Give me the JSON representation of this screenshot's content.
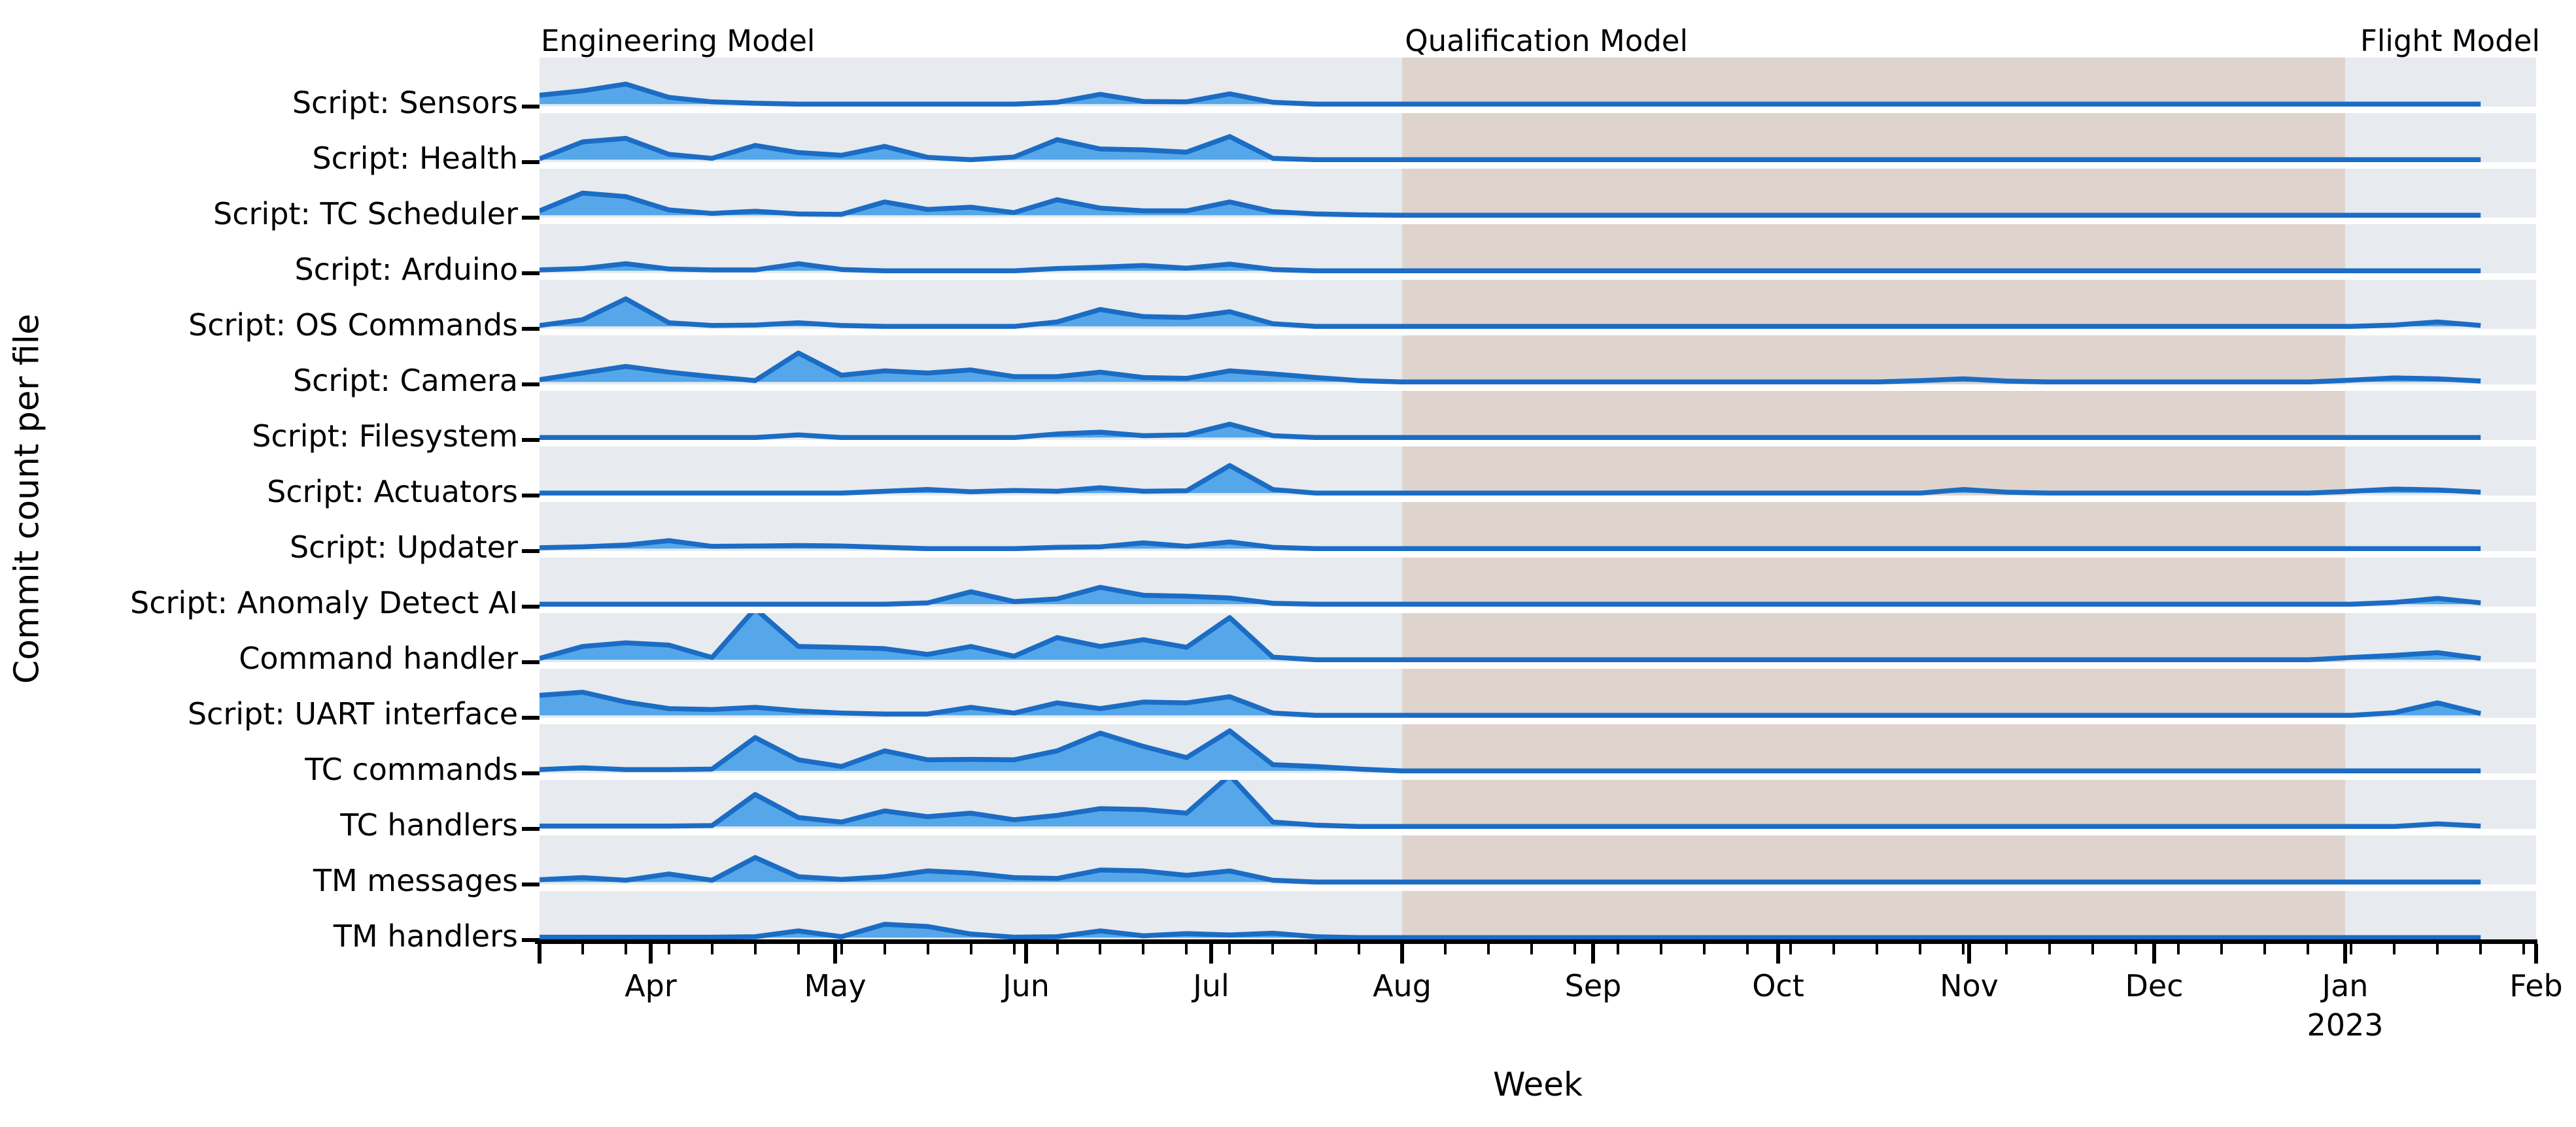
{
  "figure": {
    "y_axis_label": "Commit count per file",
    "x_axis_label": "Week"
  },
  "chart_data": {
    "type": "area",
    "subtype": "ridgeline",
    "title": "",
    "xlabel": "Week",
    "ylabel": "Commit count per file",
    "x_range": [
      "2022-03-14",
      "2023-02-01"
    ],
    "value_unit": "relative height per row; 1.0 = full row height (values > 1 are clipped by the row band)",
    "grid": false,
    "legend": "none",
    "colors": {
      "area_fill": "#55a7e9",
      "area_stroke": "#1b6cc4",
      "row_background": "#e7eaee",
      "qualification_shade": "#ded4cd",
      "axis": "#000000",
      "background": "#ffffff"
    },
    "phases": [
      {
        "label": "Engineering Model",
        "start": "2022-03-14",
        "end": "2022-08-01",
        "shaded": false,
        "label_align": "left"
      },
      {
        "label": "Qualification Model",
        "start": "2022-08-01",
        "end": "2023-01-01",
        "shaded": true,
        "label_align": "left"
      },
      {
        "label": "Flight Model",
        "start": "2023-01-01",
        "end": "2023-02-01",
        "shaded": false,
        "label_align": "right"
      }
    ],
    "x_ticks": [
      {
        "label": "",
        "date": "2022-03-14"
      },
      {
        "label": "Apr",
        "date": "2022-04-01"
      },
      {
        "label": "May",
        "date": "2022-05-01"
      },
      {
        "label": "Jun",
        "date": "2022-06-01"
      },
      {
        "label": "Jul",
        "date": "2022-07-01"
      },
      {
        "label": "Aug",
        "date": "2022-08-01"
      },
      {
        "label": "Sep",
        "date": "2022-09-01"
      },
      {
        "label": "Oct",
        "date": "2022-10-01"
      },
      {
        "label": "Nov",
        "date": "2022-11-01"
      },
      {
        "label": "Dec",
        "date": "2022-12-01"
      },
      {
        "label": "Jan",
        "date": "2023-01-01",
        "year_label": "2023"
      },
      {
        "label": "Feb",
        "date": "2023-02-01"
      }
    ],
    "x": [
      "2022-03-14",
      "2022-03-21",
      "2022-03-28",
      "2022-04-04",
      "2022-04-11",
      "2022-04-18",
      "2022-04-25",
      "2022-05-02",
      "2022-05-09",
      "2022-05-16",
      "2022-05-23",
      "2022-05-30",
      "2022-06-06",
      "2022-06-13",
      "2022-06-20",
      "2022-06-27",
      "2022-07-04",
      "2022-07-11",
      "2022-07-18",
      "2022-07-25",
      "2022-08-01",
      "2022-08-08",
      "2022-08-15",
      "2022-08-22",
      "2022-08-29",
      "2022-09-05",
      "2022-09-12",
      "2022-09-19",
      "2022-09-26",
      "2022-10-03",
      "2022-10-10",
      "2022-10-17",
      "2022-10-24",
      "2022-10-31",
      "2022-11-07",
      "2022-11-14",
      "2022-11-21",
      "2022-11-28",
      "2022-12-05",
      "2022-12-12",
      "2022-12-19",
      "2022-12-26",
      "2023-01-02",
      "2023-01-09",
      "2023-01-16",
      "2023-01-23"
    ],
    "series": [
      {
        "name": "Script: Sensors",
        "values": [
          0.2,
          0.3,
          0.45,
          0.15,
          0.05,
          0.02,
          0,
          0,
          0,
          0,
          0,
          0,
          0.04,
          0.22,
          0.06,
          0.05,
          0.23,
          0.04,
          0,
          0,
          0,
          0,
          0,
          0,
          0,
          0,
          0,
          0,
          0,
          0,
          0,
          0,
          0,
          0,
          0,
          0,
          0,
          0,
          0,
          0,
          0,
          0,
          0,
          0,
          0,
          0
        ]
      },
      {
        "name": "Script: Health",
        "values": [
          0.02,
          0.4,
          0.48,
          0.12,
          0.03,
          0.32,
          0.16,
          0.1,
          0.3,
          0.05,
          0,
          0.06,
          0.45,
          0.24,
          0.22,
          0.17,
          0.52,
          0.03,
          0,
          0,
          0,
          0,
          0,
          0,
          0,
          0,
          0,
          0,
          0,
          0,
          0,
          0,
          0,
          0,
          0,
          0,
          0,
          0,
          0,
          0,
          0,
          0,
          0,
          0,
          0,
          0
        ]
      },
      {
        "name": "Script: TC Scheduler",
        "values": [
          0.1,
          0.5,
          0.42,
          0.12,
          0.04,
          0.09,
          0.03,
          0.02,
          0.3,
          0.13,
          0.18,
          0.06,
          0.35,
          0.16,
          0.1,
          0.1,
          0.3,
          0.08,
          0.03,
          0.01,
          0,
          0,
          0,
          0,
          0,
          0,
          0,
          0,
          0,
          0,
          0,
          0,
          0,
          0,
          0,
          0,
          0,
          0,
          0,
          0,
          0,
          0,
          0,
          0,
          0,
          0
        ]
      },
      {
        "name": "Script: Arduino",
        "values": [
          0.02,
          0.05,
          0.16,
          0.04,
          0.02,
          0.02,
          0.16,
          0.03,
          0,
          0,
          0,
          0,
          0.05,
          0.08,
          0.12,
          0.06,
          0.15,
          0.03,
          0,
          0,
          0,
          0,
          0,
          0,
          0,
          0,
          0,
          0,
          0,
          0,
          0,
          0,
          0,
          0,
          0,
          0,
          0,
          0,
          0,
          0,
          0,
          0,
          0,
          0,
          0,
          0
        ]
      },
      {
        "name": "Script: OS Commands",
        "values": [
          0.02,
          0.15,
          0.62,
          0.08,
          0.02,
          0.03,
          0.08,
          0.02,
          0,
          0,
          0,
          0,
          0.1,
          0.38,
          0.22,
          0.2,
          0.33,
          0.06,
          0,
          0,
          0,
          0,
          0,
          0,
          0,
          0,
          0,
          0,
          0,
          0,
          0,
          0,
          0,
          0,
          0,
          0,
          0,
          0,
          0,
          0,
          0,
          0,
          0,
          0.03,
          0.1,
          0.02
        ]
      },
      {
        "name": "Script: Camera",
        "values": [
          0.05,
          0.2,
          0.35,
          0.22,
          0.12,
          0.03,
          0.65,
          0.15,
          0.25,
          0.2,
          0.27,
          0.12,
          0.12,
          0.22,
          0.1,
          0.08,
          0.25,
          0.18,
          0.1,
          0.03,
          0,
          0,
          0,
          0,
          0,
          0,
          0,
          0,
          0,
          0,
          0,
          0,
          0.03,
          0.07,
          0.02,
          0,
          0,
          0,
          0,
          0,
          0,
          0,
          0.04,
          0.09,
          0.07,
          0.02
        ]
      },
      {
        "name": "Script: Filesystem",
        "values": [
          0,
          0,
          0,
          0,
          0,
          0,
          0.06,
          0,
          0,
          0,
          0,
          0,
          0.08,
          0.12,
          0.04,
          0.06,
          0.3,
          0.04,
          0,
          0,
          0,
          0,
          0,
          0,
          0,
          0,
          0,
          0,
          0,
          0,
          0,
          0,
          0,
          0,
          0,
          0,
          0,
          0,
          0,
          0,
          0,
          0,
          0,
          0,
          0,
          0
        ]
      },
      {
        "name": "Script: Actuators",
        "values": [
          0,
          0,
          0,
          0,
          0,
          0,
          0,
          0,
          0.04,
          0.08,
          0.03,
          0.06,
          0.04,
          0.12,
          0.04,
          0.05,
          0.62,
          0.08,
          0,
          0,
          0,
          0,
          0,
          0,
          0,
          0,
          0,
          0,
          0,
          0,
          0,
          0,
          0,
          0.08,
          0.02,
          0,
          0,
          0,
          0,
          0,
          0,
          0,
          0.04,
          0.09,
          0.07,
          0.02
        ]
      },
      {
        "name": "Script: Updater",
        "values": [
          0.02,
          0.04,
          0.08,
          0.18,
          0.05,
          0.06,
          0.07,
          0.06,
          0.03,
          0,
          0,
          0,
          0.03,
          0.04,
          0.13,
          0.05,
          0.15,
          0.03,
          0,
          0,
          0,
          0,
          0,
          0,
          0,
          0,
          0,
          0,
          0,
          0,
          0,
          0,
          0,
          0,
          0,
          0,
          0,
          0,
          0,
          0,
          0,
          0,
          0,
          0,
          0,
          0
        ]
      },
      {
        "name": "Script: Anomaly Detect AI",
        "values": [
          0,
          0,
          0,
          0,
          0,
          0,
          0,
          0,
          0,
          0.03,
          0.28,
          0.06,
          0.12,
          0.38,
          0.2,
          0.18,
          0.14,
          0.02,
          0,
          0,
          0,
          0,
          0,
          0,
          0,
          0,
          0,
          0,
          0,
          0,
          0,
          0,
          0,
          0,
          0,
          0,
          0,
          0,
          0,
          0,
          0,
          0,
          0,
          0.04,
          0.13,
          0.03
        ]
      },
      {
        "name": "Command handler",
        "values": [
          0.03,
          0.3,
          0.38,
          0.33,
          0.05,
          1.15,
          0.3,
          0.28,
          0.25,
          0.12,
          0.3,
          0.08,
          0.5,
          0.3,
          0.45,
          0.28,
          0.95,
          0.06,
          0,
          0,
          0,
          0,
          0,
          0,
          0,
          0,
          0,
          0,
          0,
          0,
          0,
          0,
          0,
          0,
          0,
          0,
          0,
          0,
          0,
          0,
          0,
          0,
          0.05,
          0.1,
          0.16,
          0.03
        ]
      },
      {
        "name": "Script: UART interface",
        "values": [
          0.45,
          0.52,
          0.3,
          0.15,
          0.13,
          0.18,
          0.1,
          0.05,
          0.03,
          0.03,
          0.18,
          0.05,
          0.28,
          0.15,
          0.3,
          0.28,
          0.42,
          0.05,
          0,
          0,
          0,
          0,
          0,
          0,
          0,
          0,
          0,
          0,
          0,
          0,
          0,
          0,
          0,
          0,
          0,
          0,
          0,
          0,
          0,
          0,
          0,
          0,
          0,
          0.06,
          0.28,
          0.04
        ]
      },
      {
        "name": "TC commands",
        "values": [
          0.03,
          0.07,
          0.03,
          0.03,
          0.04,
          0.75,
          0.25,
          0.1,
          0.45,
          0.25,
          0.26,
          0.25,
          0.45,
          0.85,
          0.55,
          0.3,
          0.9,
          0.14,
          0.1,
          0.04,
          0,
          0,
          0,
          0,
          0,
          0,
          0,
          0,
          0,
          0,
          0,
          0,
          0,
          0,
          0,
          0,
          0,
          0,
          0,
          0,
          0,
          0,
          0,
          0,
          0,
          0
        ]
      },
      {
        "name": "TC handlers",
        "values": [
          0.01,
          0.01,
          0.01,
          0.01,
          0.02,
          0.72,
          0.2,
          0.1,
          0.35,
          0.22,
          0.3,
          0.15,
          0.25,
          0.4,
          0.38,
          0.3,
          1.15,
          0.1,
          0.03,
          0,
          0,
          0,
          0,
          0,
          0,
          0,
          0,
          0,
          0,
          0,
          0,
          0,
          0,
          0,
          0,
          0,
          0,
          0,
          0,
          0,
          0,
          0,
          0,
          0,
          0.06,
          0.01
        ]
      },
      {
        "name": "TM messages",
        "values": [
          0.05,
          0.1,
          0.04,
          0.18,
          0.04,
          0.55,
          0.12,
          0.06,
          0.12,
          0.25,
          0.2,
          0.1,
          0.08,
          0.27,
          0.25,
          0.15,
          0.25,
          0.04,
          0,
          0,
          0,
          0,
          0,
          0,
          0,
          0,
          0,
          0,
          0,
          0,
          0,
          0,
          0,
          0,
          0,
          0,
          0,
          0,
          0,
          0,
          0,
          0,
          0,
          0,
          0,
          0
        ]
      },
      {
        "name": "TM handlers",
        "values": [
          0.01,
          0.01,
          0.01,
          0.01,
          0.01,
          0.02,
          0.15,
          0.02,
          0.3,
          0.25,
          0.08,
          0.01,
          0.02,
          0.15,
          0.04,
          0.09,
          0.06,
          0.1,
          0.02,
          0,
          0,
          0,
          0,
          0,
          0,
          0,
          0,
          0,
          0,
          0,
          0,
          0,
          0,
          0,
          0,
          0,
          0,
          0,
          0,
          0,
          0,
          0,
          0,
          0,
          0,
          0
        ]
      }
    ]
  }
}
